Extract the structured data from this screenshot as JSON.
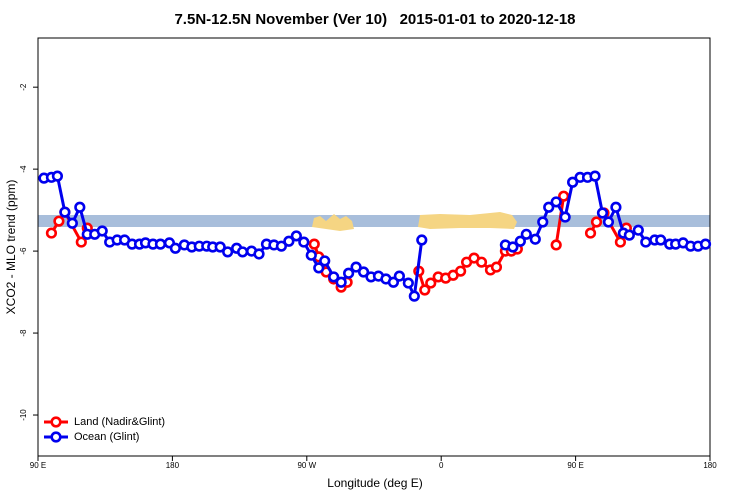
{
  "chart_data": {
    "type": "line",
    "title": "7.5N-12.5N November (Ver 10)   2015-01-01 to 2020-12-18",
    "x_label": "Longitude (deg E)",
    "y_label": "XCO2 - MLO trend (ppm)",
    "xlim": [
      90,
      540
    ],
    "xticks": [
      {
        "value": 90,
        "label": "90 E"
      },
      {
        "value": 180,
        "label": "180"
      },
      {
        "value": 270,
        "label": "90 W"
      },
      {
        "value": 360,
        "label": "0"
      },
      {
        "value": 450,
        "label": "90 E"
      },
      {
        "value": 540,
        "label": "180"
      }
    ],
    "ylim": [
      -11,
      -0.8
    ],
    "yticks": [
      -2,
      -4,
      -6,
      -8,
      -10
    ],
    "legend": "bottom-left",
    "series": [
      {
        "name": "Land (Nadir&Glint)",
        "color": "#ff0000",
        "x": [
          99,
          104,
          108,
          119,
          123,
          200,
          275,
          278,
          283,
          288,
          293,
          297,
          320,
          345,
          349,
          353,
          358,
          363,
          368,
          373,
          377,
          382,
          387,
          393,
          397,
          403,
          407,
          411,
          425,
          437,
          442,
          450,
          460,
          464,
          469,
          480,
          484
        ],
        "values": [
          -5.56,
          -5.27,
          -5.05,
          -5.78,
          -5.44,
          null,
          -5.83,
          -6.14,
          -6.51,
          -6.68,
          -6.88,
          -6.76,
          null,
          -6.49,
          -6.95,
          -6.78,
          -6.63,
          -6.66,
          -6.59,
          -6.49,
          -6.27,
          -6.17,
          -6.27,
          -6.46,
          -6.39,
          -6.0,
          -6.0,
          -5.95,
          null,
          -5.85,
          -4.66,
          null,
          -5.56,
          -5.29,
          -5.07,
          -5.78,
          -5.44
        ]
      },
      {
        "name": "Ocean (Glint)",
        "color": "#0000ee",
        "x": [
          94,
          99,
          103,
          108,
          113,
          118,
          123,
          128,
          133,
          138,
          143,
          148,
          153,
          158,
          162,
          167,
          172,
          178,
          182,
          188,
          193,
          198,
          203,
          207,
          212,
          217,
          223,
          227,
          233,
          238,
          243,
          248,
          253,
          258,
          263,
          268,
          273,
          278,
          282,
          288,
          293,
          298,
          303,
          308,
          313,
          318,
          323,
          328,
          332,
          338,
          342,
          347,
          375,
          403,
          408,
          413,
          417,
          423,
          428,
          432,
          437,
          443,
          448,
          453,
          458,
          463,
          468,
          472,
          477,
          482,
          486,
          492,
          497,
          503,
          507,
          513,
          517,
          522,
          527,
          532,
          537
        ],
        "values": [
          -4.22,
          -4.2,
          -4.17,
          -5.05,
          -5.32,
          -4.93,
          -5.59,
          -5.59,
          -5.51,
          -5.78,
          -5.73,
          -5.73,
          -5.83,
          -5.83,
          -5.8,
          -5.83,
          -5.83,
          -5.8,
          -5.93,
          -5.85,
          -5.9,
          -5.88,
          -5.88,
          -5.9,
          -5.9,
          -6.02,
          -5.93,
          -6.02,
          -6.0,
          -6.07,
          -5.83,
          -5.85,
          -5.88,
          -5.76,
          -5.63,
          -5.78,
          -6.1,
          -6.41,
          -6.24,
          -6.63,
          -6.76,
          -6.54,
          -6.39,
          -6.51,
          -6.63,
          -6.61,
          -6.68,
          -6.76,
          -6.61,
          -6.78,
          -7.1,
          -5.73,
          null,
          -5.85,
          -5.9,
          -5.76,
          -5.59,
          -5.71,
          -5.29,
          -4.93,
          -4.8,
          -5.17,
          -4.32,
          -4.2,
          -4.2,
          -4.17,
          -5.07,
          -5.29,
          -4.93,
          -5.56,
          -5.61,
          -5.49,
          -5.78,
          -5.73,
          -5.73,
          -5.83,
          -5.83,
          -5.8,
          -5.88,
          -5.88,
          -5.83
        ]
      }
    ]
  }
}
